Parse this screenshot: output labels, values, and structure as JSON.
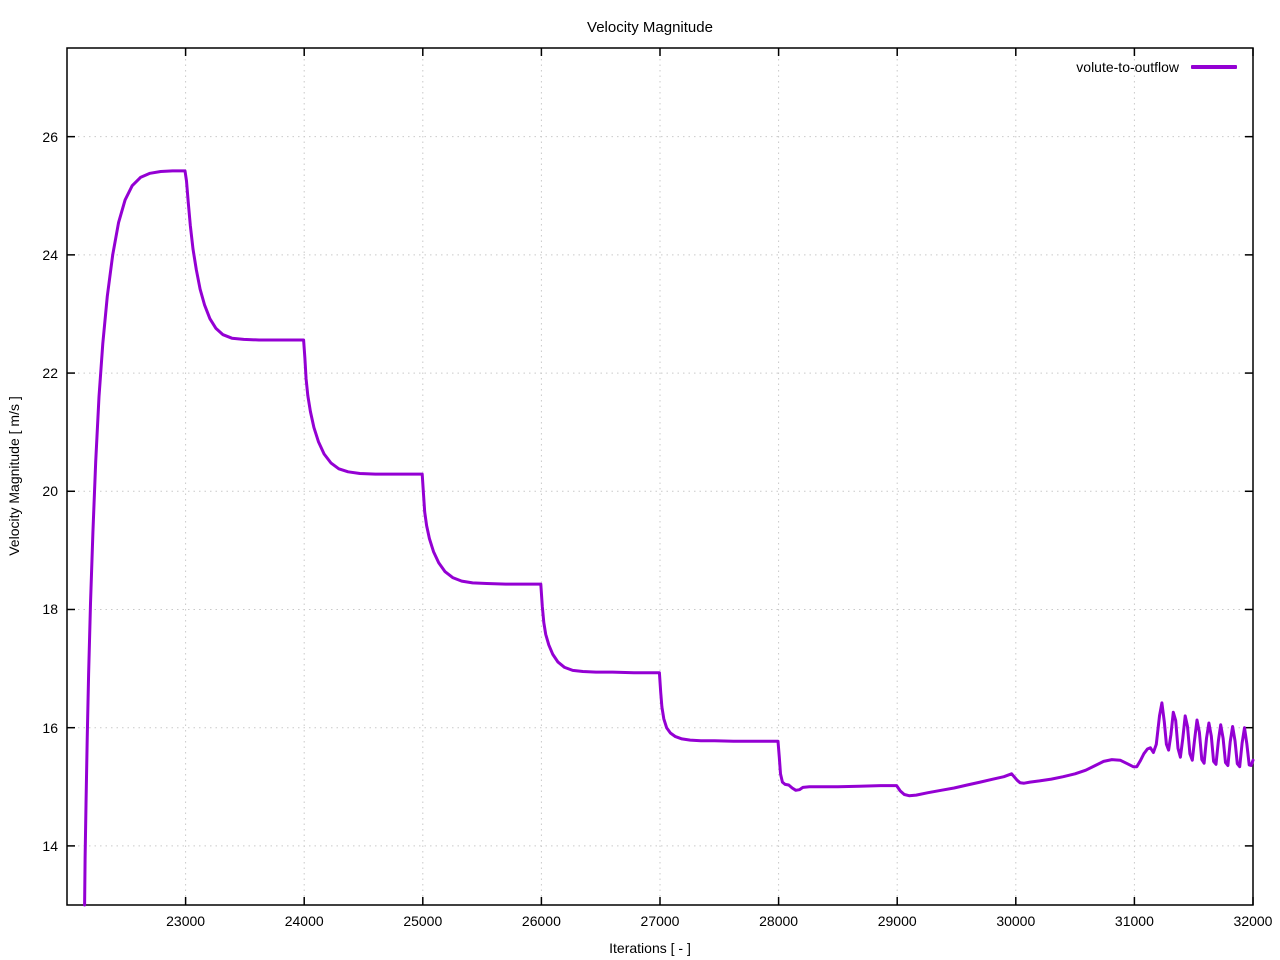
{
  "chart_data": {
    "type": "line",
    "title": "Velocity Magnitude",
    "xlabel": "Iterations [ - ]",
    "ylabel": "Velocity Magnitude [ m/s ]",
    "xlim": [
      22000,
      32000
    ],
    "ylim": [
      13.0,
      27.5
    ],
    "xticks": [
      23000,
      24000,
      25000,
      26000,
      27000,
      28000,
      29000,
      30000,
      31000,
      32000
    ],
    "yticks": [
      14,
      16,
      18,
      20,
      22,
      24,
      26
    ],
    "grid": true,
    "grid_color": "#c9c9c9",
    "border_color": "#000000",
    "legend_position": "top-right-inside",
    "series": [
      {
        "name": "volute-to-outflow",
        "color": "#9400d3",
        "points": [
          [
            22148,
            13.0
          ],
          [
            22153,
            13.8
          ],
          [
            22160,
            14.7
          ],
          [
            22170,
            15.8
          ],
          [
            22182,
            16.9
          ],
          [
            22198,
            18.1
          ],
          [
            22218,
            19.3
          ],
          [
            22242,
            20.5
          ],
          [
            22270,
            21.6
          ],
          [
            22302,
            22.5
          ],
          [
            22340,
            23.3
          ],
          [
            22385,
            24.0
          ],
          [
            22435,
            24.55
          ],
          [
            22490,
            24.93
          ],
          [
            22550,
            25.17
          ],
          [
            22620,
            25.31
          ],
          [
            22700,
            25.38
          ],
          [
            22790,
            25.41
          ],
          [
            22890,
            25.42
          ],
          [
            22995,
            25.42
          ],
          [
            23008,
            25.25
          ],
          [
            23022,
            24.9
          ],
          [
            23040,
            24.5
          ],
          [
            23062,
            24.1
          ],
          [
            23090,
            23.75
          ],
          [
            23122,
            23.42
          ],
          [
            23160,
            23.15
          ],
          [
            23205,
            22.92
          ],
          [
            23255,
            22.76
          ],
          [
            23315,
            22.65
          ],
          [
            23390,
            22.59
          ],
          [
            23490,
            22.57
          ],
          [
            23620,
            22.56
          ],
          [
            23800,
            22.56
          ],
          [
            23995,
            22.56
          ],
          [
            24006,
            22.25
          ],
          [
            24016,
            21.9
          ],
          [
            24030,
            21.62
          ],
          [
            24052,
            21.35
          ],
          [
            24082,
            21.08
          ],
          [
            24120,
            20.84
          ],
          [
            24168,
            20.63
          ],
          [
            24225,
            20.48
          ],
          [
            24292,
            20.38
          ],
          [
            24370,
            20.33
          ],
          [
            24470,
            20.3
          ],
          [
            24600,
            20.29
          ],
          [
            24780,
            20.29
          ],
          [
            24995,
            20.29
          ],
          [
            25006,
            19.95
          ],
          [
            25016,
            19.65
          ],
          [
            25032,
            19.42
          ],
          [
            25056,
            19.2
          ],
          [
            25090,
            18.98
          ],
          [
            25134,
            18.79
          ],
          [
            25188,
            18.64
          ],
          [
            25252,
            18.54
          ],
          [
            25328,
            18.48
          ],
          [
            25420,
            18.45
          ],
          [
            25540,
            18.44
          ],
          [
            25700,
            18.43
          ],
          [
            25860,
            18.43
          ],
          [
            25995,
            18.43
          ],
          [
            26008,
            18.05
          ],
          [
            26020,
            17.78
          ],
          [
            26036,
            17.58
          ],
          [
            26062,
            17.4
          ],
          [
            26096,
            17.24
          ],
          [
            26140,
            17.11
          ],
          [
            26196,
            17.02
          ],
          [
            26264,
            16.97
          ],
          [
            26350,
            16.95
          ],
          [
            26460,
            16.94
          ],
          [
            26600,
            16.94
          ],
          [
            26780,
            16.93
          ],
          [
            26995,
            16.93
          ],
          [
            27006,
            16.6
          ],
          [
            27016,
            16.35
          ],
          [
            27032,
            16.15
          ],
          [
            27056,
            16.0
          ],
          [
            27088,
            15.91
          ],
          [
            27130,
            15.85
          ],
          [
            27185,
            15.81
          ],
          [
            27255,
            15.79
          ],
          [
            27345,
            15.78
          ],
          [
            27460,
            15.78
          ],
          [
            27620,
            15.77
          ],
          [
            27800,
            15.77
          ],
          [
            27995,
            15.77
          ],
          [
            28006,
            15.5
          ],
          [
            28016,
            15.22
          ],
          [
            28032,
            15.08
          ],
          [
            28055,
            15.04
          ],
          [
            28085,
            15.03
          ],
          [
            28115,
            14.98
          ],
          [
            28145,
            14.94
          ],
          [
            28175,
            14.95
          ],
          [
            28205,
            14.99
          ],
          [
            28260,
            15.0
          ],
          [
            28350,
            15.0
          ],
          [
            28500,
            15.0
          ],
          [
            28680,
            15.01
          ],
          [
            28860,
            15.02
          ],
          [
            28995,
            15.02
          ],
          [
            29025,
            14.93
          ],
          [
            29060,
            14.87
          ],
          [
            29100,
            14.85
          ],
          [
            29160,
            14.86
          ],
          [
            29260,
            14.9
          ],
          [
            29370,
            14.94
          ],
          [
            29480,
            14.98
          ],
          [
            29590,
            15.03
          ],
          [
            29700,
            15.08
          ],
          [
            29810,
            15.13
          ],
          [
            29900,
            15.17
          ],
          [
            29965,
            15.22
          ],
          [
            30012,
            15.11
          ],
          [
            30035,
            15.07
          ],
          [
            30070,
            15.06
          ],
          [
            30120,
            15.08
          ],
          [
            30200,
            15.1
          ],
          [
            30300,
            15.13
          ],
          [
            30400,
            15.17
          ],
          [
            30500,
            15.22
          ],
          [
            30590,
            15.28
          ],
          [
            30670,
            15.36
          ],
          [
            30740,
            15.43
          ],
          [
            30810,
            15.46
          ],
          [
            30880,
            15.45
          ],
          [
            30940,
            15.39
          ],
          [
            30990,
            15.34
          ],
          [
            31020,
            15.34
          ],
          [
            31050,
            15.44
          ],
          [
            31080,
            15.56
          ],
          [
            31110,
            15.64
          ],
          [
            31135,
            15.66
          ],
          [
            31160,
            15.58
          ],
          [
            31185,
            15.72
          ],
          [
            31212,
            16.2
          ],
          [
            31232,
            16.42
          ],
          [
            31252,
            16.1
          ],
          [
            31270,
            15.72
          ],
          [
            31288,
            15.62
          ],
          [
            31308,
            15.88
          ],
          [
            31328,
            16.26
          ],
          [
            31348,
            16.12
          ],
          [
            31368,
            15.65
          ],
          [
            31388,
            15.5
          ],
          [
            31408,
            15.82
          ],
          [
            31428,
            16.2
          ],
          [
            31448,
            16.02
          ],
          [
            31468,
            15.56
          ],
          [
            31488,
            15.45
          ],
          [
            31508,
            15.8
          ],
          [
            31528,
            16.13
          ],
          [
            31548,
            15.92
          ],
          [
            31568,
            15.46
          ],
          [
            31588,
            15.4
          ],
          [
            31608,
            15.82
          ],
          [
            31628,
            16.08
          ],
          [
            31648,
            15.86
          ],
          [
            31668,
            15.43
          ],
          [
            31688,
            15.38
          ],
          [
            31708,
            15.78
          ],
          [
            31728,
            16.05
          ],
          [
            31748,
            15.82
          ],
          [
            31768,
            15.41
          ],
          [
            31788,
            15.36
          ],
          [
            31808,
            15.76
          ],
          [
            31828,
            16.02
          ],
          [
            31848,
            15.78
          ],
          [
            31868,
            15.39
          ],
          [
            31888,
            15.34
          ],
          [
            31908,
            15.74
          ],
          [
            31928,
            16.0
          ],
          [
            31948,
            15.73
          ],
          [
            31968,
            15.37
          ],
          [
            31984,
            15.36
          ],
          [
            32000,
            15.45
          ]
        ]
      }
    ]
  }
}
